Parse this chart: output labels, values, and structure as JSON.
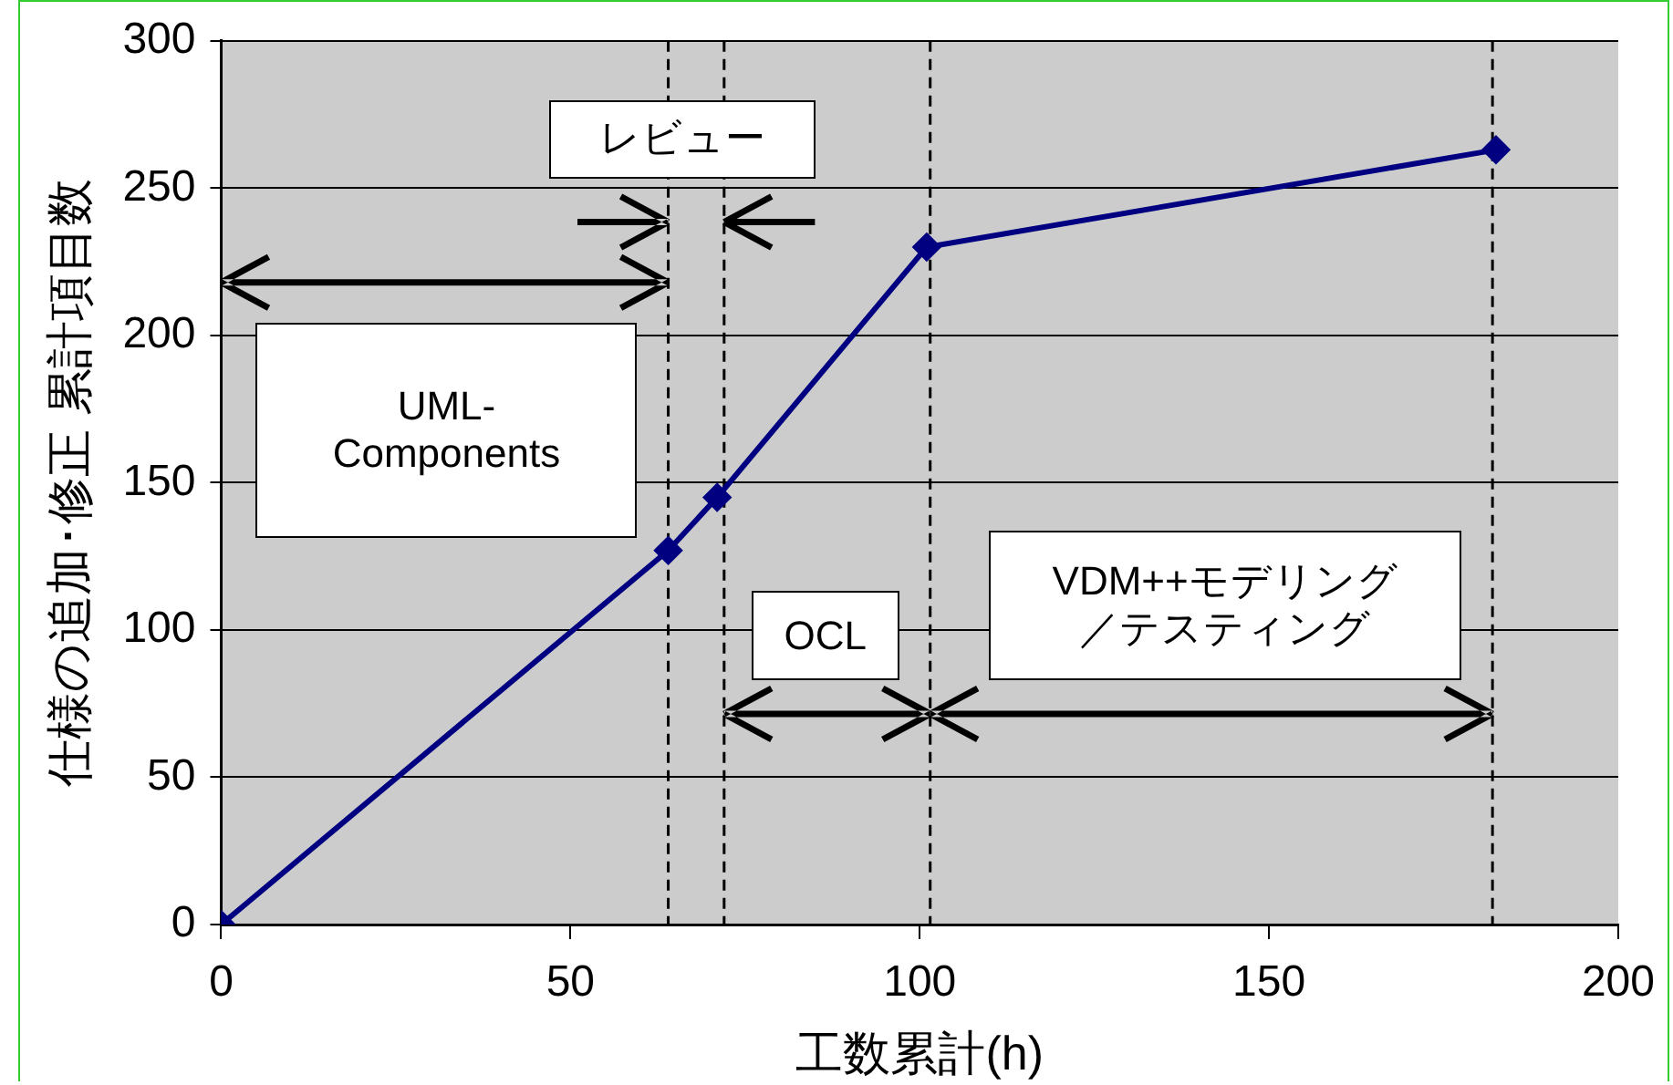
{
  "chart_data": {
    "type": "line",
    "xlabel": "工数累計(h)",
    "ylabel": "仕様の追加･修正 累計項目数",
    "x": [
      0,
      64,
      71,
      101,
      182.5
    ],
    "series": [
      {
        "color": "#000080",
        "values": [
          0,
          127,
          145,
          230,
          263
        ]
      }
    ],
    "xlim": [
      0,
      200
    ],
    "xticks": [
      0,
      50,
      100,
      150,
      200
    ],
    "ylim": [
      0,
      300
    ],
    "yticks": [
      0,
      50,
      100,
      150,
      200,
      250,
      300
    ],
    "grid": "y",
    "legend": false,
    "marker": "diamond",
    "line_style": "solid",
    "ref_lines": [
      {
        "axis": "x",
        "value": 64,
        "color": "#000000",
        "line_style": "dashed"
      },
      {
        "axis": "x",
        "value": 72,
        "color": "#000000",
        "line_style": "dashed"
      },
      {
        "axis": "x",
        "value": 101.5,
        "color": "#000000",
        "line_style": "dashed"
      },
      {
        "axis": "x",
        "value": 182,
        "color": "#000000",
        "line_style": "dashed"
      }
    ],
    "annotations": [
      "レビュー",
      "UML-Components",
      "OCL",
      "VDM++モデリング／テスティング"
    ]
  }
}
